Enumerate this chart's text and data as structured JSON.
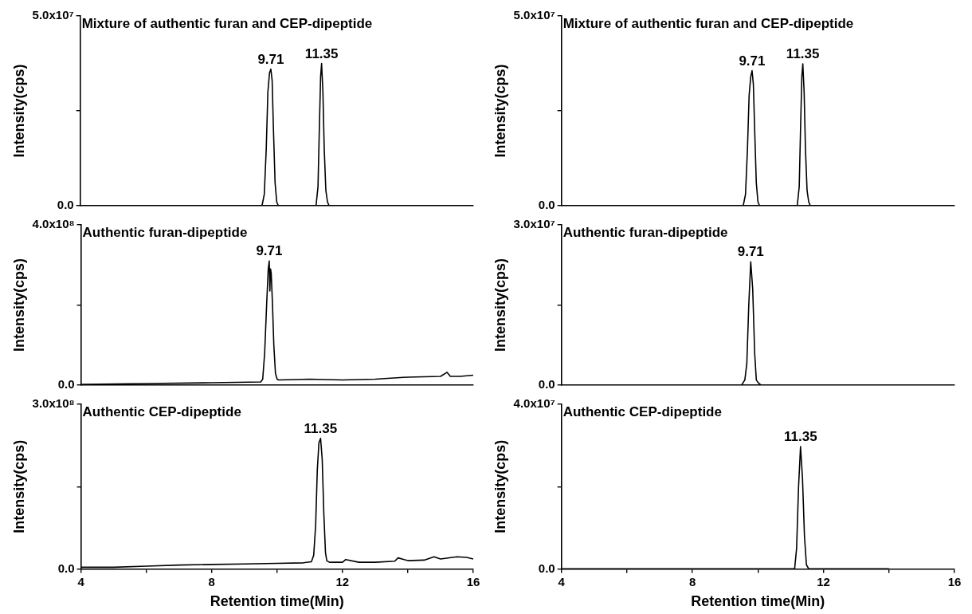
{
  "chart_data": [
    {
      "type": "line",
      "title": "Mixture of authentic furan and CEP-dipeptide",
      "ylabel": "Intensity(cps)",
      "color": "#000000",
      "marker": "none",
      "tick_labels": "y",
      "xlim": [
        4,
        16
      ],
      "ylim": [
        0,
        50000000
      ],
      "yticks": [
        {
          "value": 0,
          "label": "0.0"
        },
        {
          "value": 25000000,
          "label": null
        },
        {
          "value": 50000000,
          "label": "5.0x10⁷"
        }
      ],
      "x": [
        4,
        9.55,
        9.62,
        9.68,
        9.73,
        9.78,
        9.82,
        9.86,
        9.9,
        9.95,
        10.0,
        10.05,
        11.2,
        11.26,
        11.3,
        11.34,
        11.37,
        11.41,
        11.45,
        11.5,
        11.55,
        11.6,
        16
      ],
      "values": [
        0,
        0,
        3000000,
        15000000,
        30000000,
        35000000,
        36000000,
        33000000,
        20000000,
        6000000,
        1000000,
        0,
        0,
        5000000,
        20000000,
        34000000,
        37500000,
        30000000,
        15000000,
        4000000,
        1000000,
        0,
        0
      ],
      "annotations": [
        {
          "text": "9.71",
          "x": 9.82,
          "y": 36000000
        },
        {
          "text": "11.35",
          "x": 11.37,
          "y": 37500000
        }
      ]
    },
    {
      "type": "line",
      "title": "Mixture of authentic furan and CEP-dipeptide",
      "ylabel": "Intensity(cps)",
      "color": "#000000",
      "marker": "none",
      "tick_labels": "y",
      "xlim": [
        4,
        16
      ],
      "ylim": [
        0,
        50000000
      ],
      "yticks": [
        {
          "value": 0,
          "label": "0.0"
        },
        {
          "value": 25000000,
          "label": null
        },
        {
          "value": 50000000,
          "label": "5.0x10⁷"
        }
      ],
      "x": [
        4,
        9.55,
        9.62,
        9.68,
        9.73,
        9.78,
        9.82,
        9.86,
        9.9,
        9.95,
        10.0,
        10.05,
        11.2,
        11.26,
        11.3,
        11.34,
        11.37,
        11.41,
        11.45,
        11.5,
        11.55,
        11.6,
        14
      ],
      "values": [
        0,
        0,
        3000000,
        15000000,
        29000000,
        34000000,
        35600000,
        32000000,
        20000000,
        6000000,
        1000000,
        0,
        0,
        5000000,
        20000000,
        34000000,
        37400000,
        30000000,
        15000000,
        4000000,
        1000000,
        0,
        0
      ],
      "annotations": [
        {
          "text": "9.71",
          "x": 9.82,
          "y": 35600000
        },
        {
          "text": "11.35",
          "x": 11.37,
          "y": 37400000
        }
      ]
    },
    {
      "type": "line",
      "title": "Authentic furan-dipeptide",
      "ylabel": "Intensity(cps)",
      "color": "#000000",
      "marker": "none",
      "tick_labels": "y",
      "xlim": [
        4,
        16
      ],
      "ylim": [
        0,
        400000000
      ],
      "yticks": [
        {
          "value": 0,
          "label": "0.0"
        },
        {
          "value": 200000000,
          "label": null
        },
        {
          "value": 400000000,
          "label": "4.0x10⁸"
        }
      ],
      "x": [
        4,
        6,
        8,
        9.5,
        9.56,
        9.62,
        9.68,
        9.73,
        9.76,
        9.78,
        9.8,
        9.82,
        9.86,
        9.9,
        9.95,
        10.0,
        10.05,
        11,
        12,
        13,
        14,
        15,
        15.2,
        15.3,
        15.6,
        16
      ],
      "values": [
        2000000,
        4000000,
        6000000,
        8000000,
        15000000,
        80000000,
        200000000,
        290000000,
        310000000,
        235000000,
        290000000,
        280000000,
        200000000,
        100000000,
        30000000,
        15000000,
        13000000,
        15000000,
        13000000,
        15000000,
        20000000,
        22000000,
        32000000,
        22000000,
        22000000,
        25000000
      ],
      "annotations": [
        {
          "text": "9.71",
          "x": 9.76,
          "y": 310000000
        }
      ]
    },
    {
      "type": "line",
      "title": "Authentic furan-dipeptide",
      "ylabel": "Intensity(cps)",
      "color": "#000000",
      "marker": "none",
      "tick_labels": "y",
      "xlim": [
        4,
        16
      ],
      "ylim": [
        0,
        30000000
      ],
      "yticks": [
        {
          "value": 0,
          "label": "0.0"
        },
        {
          "value": 15000000,
          "label": null
        },
        {
          "value": 30000000,
          "label": "3.0x10⁷"
        }
      ],
      "x": [
        4,
        9.5,
        9.6,
        9.66,
        9.72,
        9.78,
        9.84,
        9.9,
        9.95,
        10.0,
        10.1,
        14
      ],
      "values": [
        0,
        0,
        1000000,
        4000000,
        15000000,
        23100000,
        18000000,
        6000000,
        1000000,
        500000,
        0,
        0
      ],
      "annotations": [
        {
          "text": "9.71",
          "x": 9.78,
          "y": 23100000
        }
      ]
    },
    {
      "type": "line",
      "title": "Authentic CEP-dipeptide",
      "xlabel": "Retention time(Min)",
      "ylabel": "Intensity(cps)",
      "color": "#000000",
      "marker": "none",
      "xlim": [
        4,
        16
      ],
      "xticks": [
        4,
        {
          "value": 6,
          "label": null
        },
        8,
        {
          "value": 10,
          "label": null
        },
        12,
        {
          "value": 14,
          "label": null
        },
        16
      ],
      "ylim": [
        0,
        300000000
      ],
      "yticks": [
        {
          "value": 0,
          "label": "0.0"
        },
        {
          "value": 150000000,
          "label": null
        },
        {
          "value": 300000000,
          "label": "3.0x10⁸"
        }
      ],
      "x": [
        4,
        5,
        6,
        7,
        8,
        9,
        10,
        10.8,
        11.05,
        11.12,
        11.18,
        11.23,
        11.28,
        11.33,
        11.38,
        11.43,
        11.48,
        11.52,
        11.6,
        12,
        12.1,
        12.5,
        13,
        13.6,
        13.7,
        14,
        14.5,
        14.8,
        15,
        15.5,
        15.8,
        16
      ],
      "values": [
        3000000,
        3000000,
        5000000,
        7000000,
        8000000,
        9000000,
        10000000,
        11000000,
        13000000,
        25000000,
        80000000,
        180000000,
        230000000,
        238000000,
        200000000,
        100000000,
        30000000,
        15000000,
        12000000,
        12000000,
        17000000,
        12000000,
        12000000,
        14000000,
        20000000,
        15000000,
        16000000,
        22000000,
        18000000,
        22000000,
        21000000,
        18000000
      ],
      "annotations": [
        {
          "text": "11.35",
          "x": 11.33,
          "y": 238000000
        }
      ]
    },
    {
      "type": "line",
      "title": "Authentic CEP-dipeptide",
      "xlabel": "Retention time(Min)",
      "ylabel": "Intensity(cps)",
      "color": "#000000",
      "marker": "none",
      "xlim": [
        4,
        16
      ],
      "xticks": [
        4,
        {
          "value": 6,
          "label": null
        },
        8,
        {
          "value": 10,
          "label": null
        },
        12,
        {
          "value": 14,
          "label": null
        },
        16
      ],
      "ylim": [
        0,
        40000000
      ],
      "yticks": [
        {
          "value": 0,
          "label": "0.0"
        },
        {
          "value": 20000000,
          "label": null
        },
        {
          "value": 40000000,
          "label": "4.0x10⁷"
        }
      ],
      "x": [
        4,
        11.12,
        11.18,
        11.24,
        11.3,
        11.36,
        11.42,
        11.48,
        11.55,
        14
      ],
      "values": [
        0,
        0,
        5000000,
        20000000,
        29700000,
        22000000,
        8000000,
        1000000,
        0,
        0
      ],
      "annotations": [
        {
          "text": "11.35",
          "x": 11.3,
          "y": 29700000
        }
      ]
    }
  ]
}
